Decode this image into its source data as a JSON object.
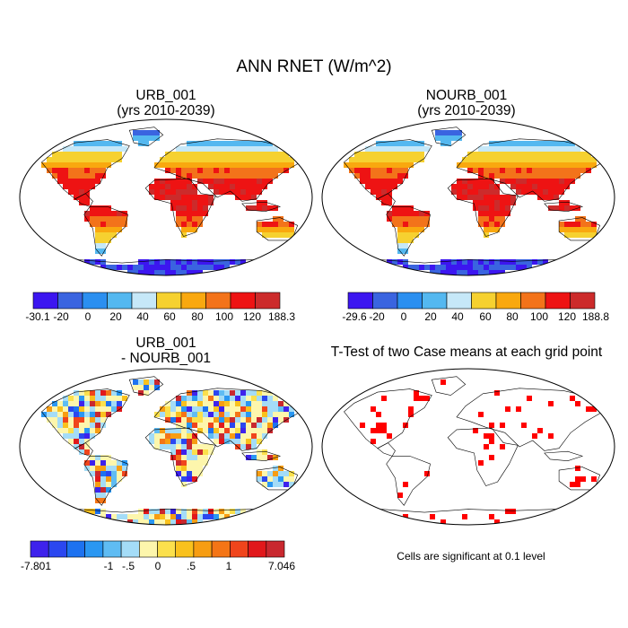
{
  "figure_title": "ANN RNET (W/m^2)",
  "colors": {
    "set1": [
      "#3c16f0",
      "#3a64e0",
      "#2b8ff0",
      "#54b8f0",
      "#c6e8f8",
      "#f6d130",
      "#f9a80f",
      "#f3731a",
      "#ee1313",
      "#cc2b2b"
    ],
    "diff": [
      "#3e22ec",
      "#2b47f0",
      "#1d72f0",
      "#2a97f2",
      "#5fbcf3",
      "#a4dcf7",
      "#fdf6ac",
      "#fbe04c",
      "#f9c11d",
      "#f79d12",
      "#f47516",
      "#f0451c",
      "#e1181b",
      "#c9282f"
    ],
    "ocean": "#ffffff",
    "coast": "#000000",
    "ttest": "#ff0000"
  },
  "chart_data": [
    {
      "type": "heatmap",
      "title_line1": "URB_001",
      "title_line2": "(yrs 2010-2039)",
      "units": "W/m^2",
      "colorbar_ticks": [
        "-30.1",
        "-20",
        "0",
        "20",
        "40",
        "60",
        "80",
        "100",
        "120",
        "188.3"
      ]
    },
    {
      "type": "heatmap",
      "title_line1": "NOURB_001",
      "title_line2": "(yrs 2010-2039)",
      "units": "W/m^2",
      "colorbar_ticks": [
        "-29.6",
        "-20",
        "0",
        "20",
        "40",
        "60",
        "80",
        "100",
        "120",
        "188.8"
      ]
    },
    {
      "type": "heatmap",
      "title_line1": "URB_001",
      "title_line2": "- NOURB_001",
      "units": "W/m^2",
      "colorbar_ticks": [
        "-7.801",
        "-1",
        "-.5",
        "0",
        ".5",
        "1",
        "7.046"
      ]
    },
    {
      "type": "heatmap",
      "title": "T-Test of two Case means at each grid point",
      "note": "Cells are significant at 0.1 level"
    }
  ]
}
